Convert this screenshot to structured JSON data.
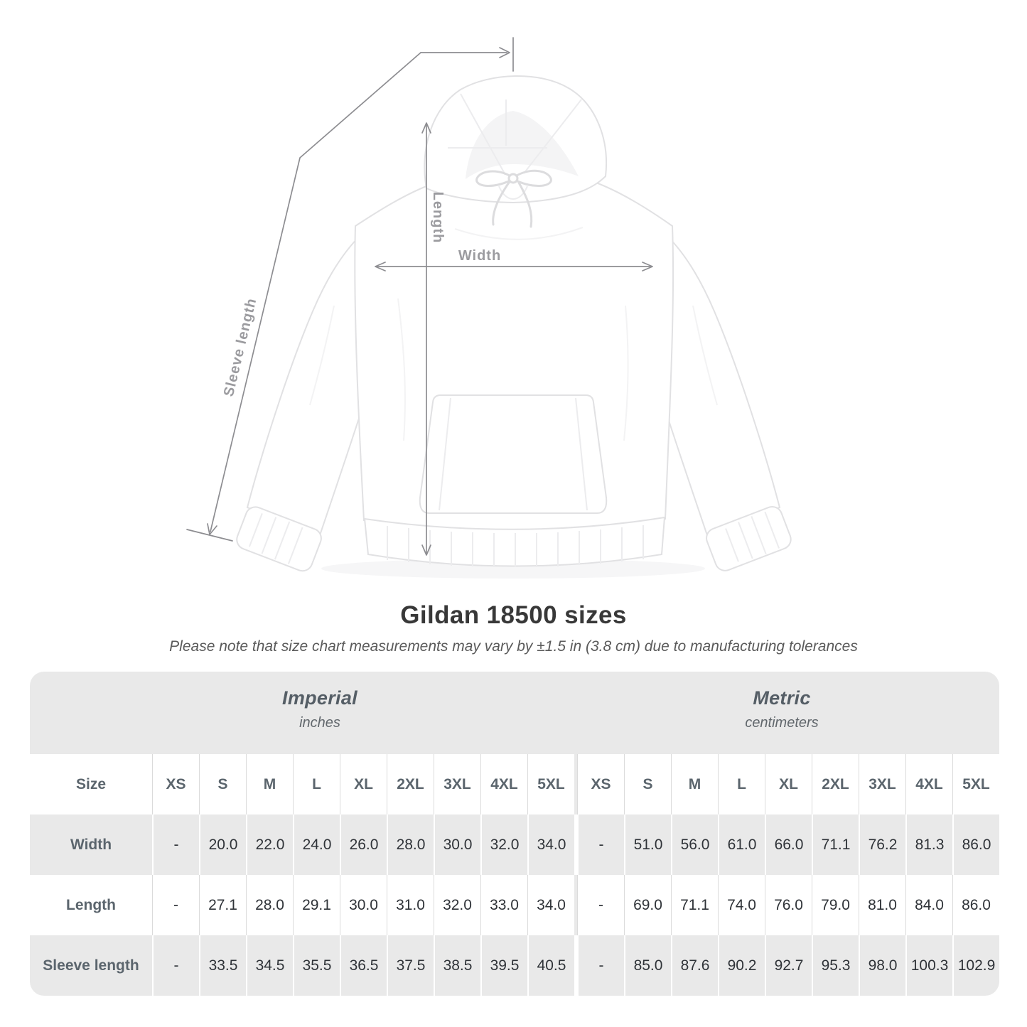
{
  "diagram": {
    "length_label": "Length",
    "width_label": "Width",
    "sleeve_label": "Sleeve length"
  },
  "heading": {
    "title": "Gildan 18500 sizes",
    "note": "Please note that size chart measurements may vary by ±1.5 in (3.8 cm) due to manufacturing tolerances"
  },
  "chart_data": {
    "type": "table",
    "title": "Gildan 18500 sizes",
    "note": "Please note that size chart measurements may vary by ±1.5 in (3.8 cm) due to manufacturing tolerances",
    "sections": [
      {
        "name": "Imperial",
        "unit": "inches"
      },
      {
        "name": "Metric",
        "unit": "centimeters"
      }
    ],
    "size_header": "Size",
    "sizes": [
      "XS",
      "S",
      "M",
      "L",
      "XL",
      "2XL",
      "3XL",
      "4XL",
      "5XL"
    ],
    "rows": [
      {
        "label": "Width",
        "imperial": [
          "-",
          "20.0",
          "22.0",
          "24.0",
          "26.0",
          "28.0",
          "30.0",
          "32.0",
          "34.0"
        ],
        "metric": [
          "-",
          "51.0",
          "56.0",
          "61.0",
          "66.0",
          "71.1",
          "76.2",
          "81.3",
          "86.0"
        ]
      },
      {
        "label": "Length",
        "imperial": [
          "-",
          "27.1",
          "28.0",
          "29.1",
          "30.0",
          "31.0",
          "32.0",
          "33.0",
          "34.0"
        ],
        "metric": [
          "-",
          "69.0",
          "71.1",
          "74.0",
          "76.0",
          "79.0",
          "81.0",
          "84.0",
          "86.0"
        ]
      },
      {
        "label": "Sleeve length",
        "imperial": [
          "-",
          "33.5",
          "34.5",
          "35.5",
          "36.5",
          "37.5",
          "38.5",
          "39.5",
          "40.5"
        ],
        "metric": [
          "-",
          "85.0",
          "87.6",
          "90.2",
          "92.7",
          "95.3",
          "98.0",
          "100.3",
          "102.9"
        ]
      }
    ]
  },
  "colors": {
    "row_gray": "#e9e9e9",
    "separator_gray": "#dbdbdb",
    "header_text": "#5b656d",
    "value_text": "#2f3338",
    "annotation_line": "#8d8d91",
    "annotation_label": "#9b9b9f"
  }
}
